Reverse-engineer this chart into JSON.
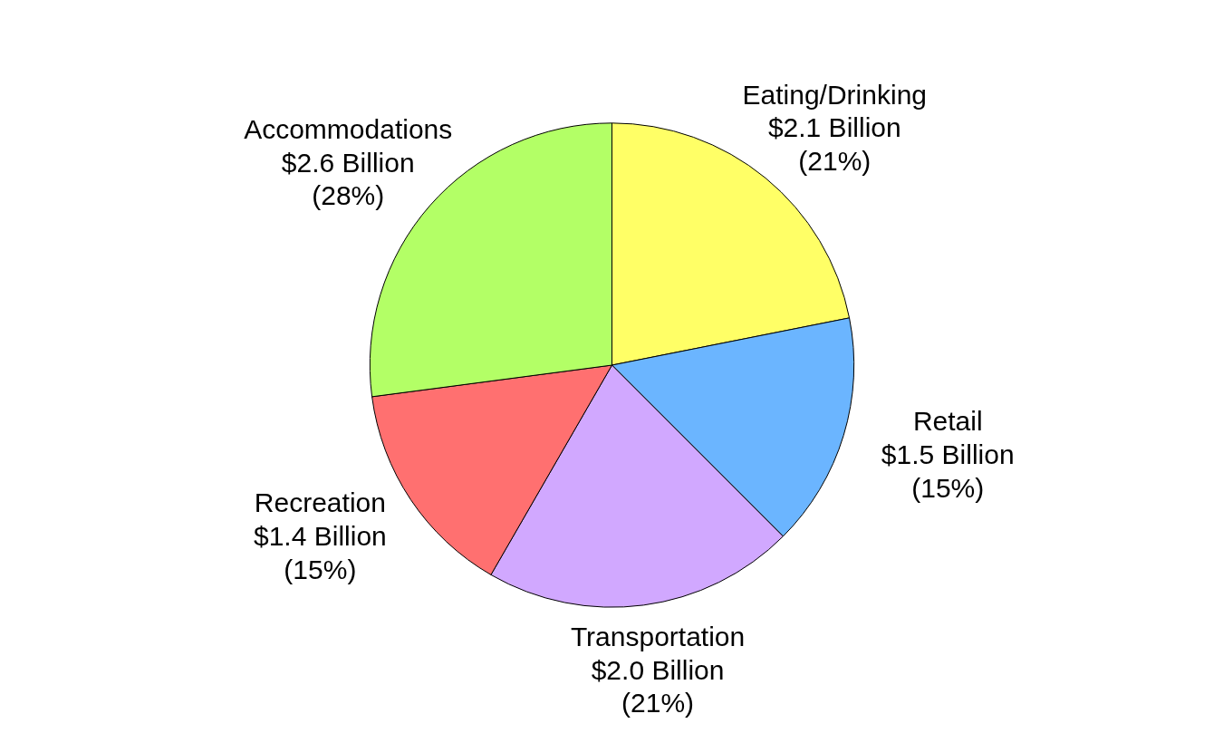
{
  "chart_data": {
    "type": "pie",
    "categories": [
      "Eating/Drinking",
      "Retail",
      "Transportation",
      "Recreation",
      "Accommodations"
    ],
    "values": [
      2.1,
      1.5,
      2.0,
      1.4,
      2.6
    ],
    "colors": [
      "#ffff66",
      "#6bb5ff",
      "#d1a8ff",
      "#ff7070",
      "#b3ff66"
    ],
    "value_labels": [
      "$2.1 Billion\n(21%)",
      "$1.5 Billion\n(15%)",
      "$2.0 Billion\n(21%)",
      "$1.4 Billion\n(15%)",
      "$2.6 Billion\n(28%)"
    ]
  }
}
